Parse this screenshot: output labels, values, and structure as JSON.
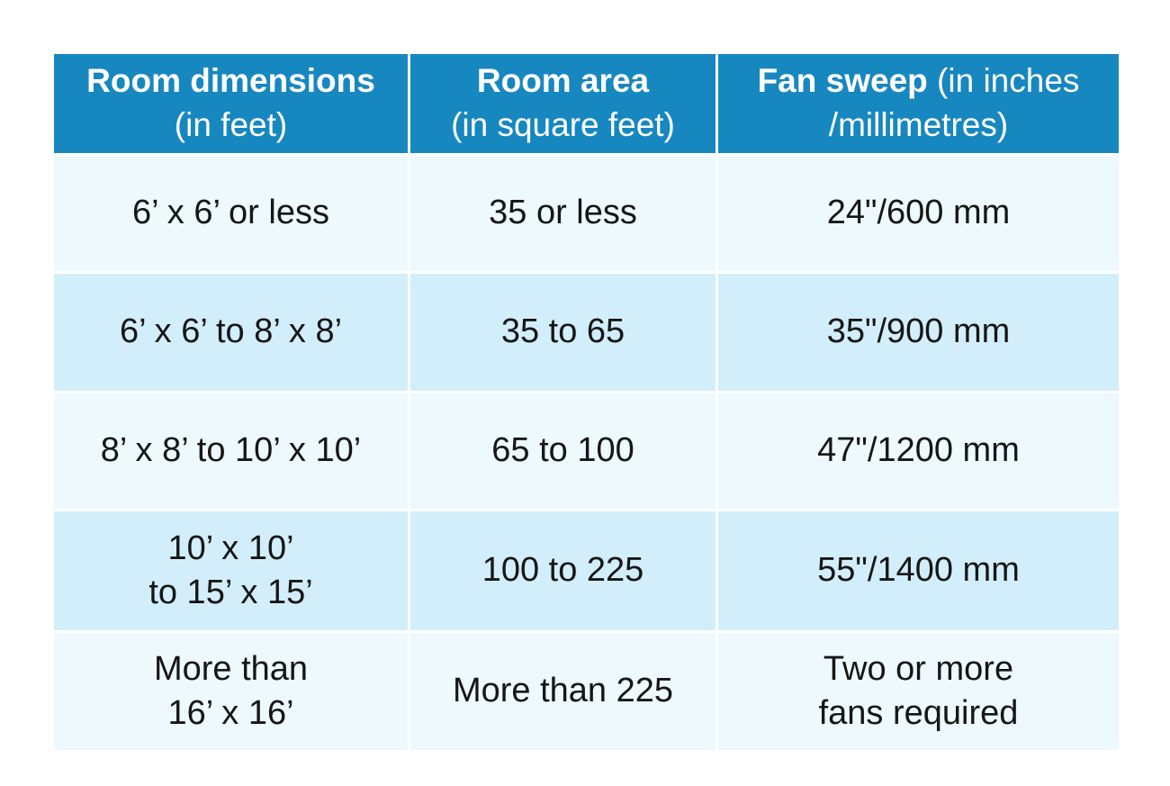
{
  "colors": {
    "header_bg": "#1787c0",
    "header_text": "#ffffff",
    "row_light_bg": "#edf9fc",
    "row_blue_bg": "#d2eefa",
    "body_text": "#161616",
    "page_bg": "#ffffff"
  },
  "table": {
    "header": [
      {
        "bold": "Room dimensions",
        "regular_inline": "",
        "line2": "(in feet)"
      },
      {
        "bold": "Room area",
        "regular_inline": "",
        "line2": "(in square feet)"
      },
      {
        "bold": "Fan sweep",
        "regular_inline": " (in inches",
        "line2": "/millimetres)"
      }
    ],
    "rows": [
      {
        "dimensions": "6’ x 6’ or less",
        "area": "35 or less",
        "sweep": "24\"/600 mm"
      },
      {
        "dimensions": "6’ x 6’ to 8’ x 8’",
        "area": "35 to 65",
        "sweep": "35\"/900 mm"
      },
      {
        "dimensions": "8’ x 8’ to 10’ x 10’",
        "area": "65 to 100",
        "sweep": "47\"/1200 mm"
      },
      {
        "dimensions": "10’ x 10’\nto 15’ x 15’",
        "area": "100 to 225",
        "sweep": "55\"/1400 mm"
      },
      {
        "dimensions": "More than\n16’ x 16’",
        "area": "More than 225",
        "sweep": "Two or more\nfans required"
      }
    ]
  },
  "chart_data": {
    "type": "table",
    "title": "",
    "columns": [
      "Room dimensions (in feet)",
      "Room area (in square feet)",
      "Fan sweep (in inches /millimetres)"
    ],
    "rows": [
      [
        "6’ x 6’ or less",
        "35 or less",
        "24\"/600 mm"
      ],
      [
        "6’ x 6’ to 8’ x 8’",
        "35 to 65",
        "35\"/900 mm"
      ],
      [
        "8’ x 8’ to 10’ x 10’",
        "65 to 100",
        "47\"/1200 mm"
      ],
      [
        "10’ x 10’ to 15’ x 15’",
        "100 to 225",
        "55\"/1400 mm"
      ],
      [
        "More than 16’ x 16’",
        "More than 225",
        "Two or more fans required"
      ]
    ]
  }
}
